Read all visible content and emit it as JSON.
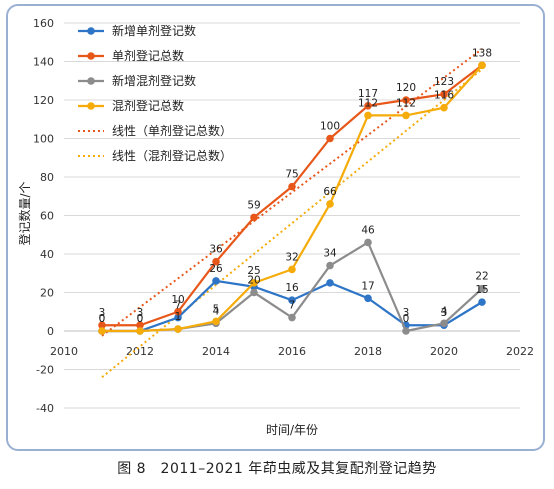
{
  "caption": "图 8　2011–2021 年茚虫威及其复配剂登记趋势",
  "chart_data": {
    "type": "line",
    "xlabel": "时间/年份",
    "ylabel": "登记数量/个",
    "xlim": [
      2010,
      2022
    ],
    "ylim": [
      -40,
      160
    ],
    "xticks": [
      2010,
      2012,
      2014,
      2016,
      2018,
      2020,
      2022
    ],
    "yticks": [
      -40,
      -20,
      0,
      20,
      40,
      60,
      80,
      100,
      120,
      140,
      160
    ],
    "grid": "horizontal",
    "legend_position": "top-left",
    "x": [
      2011,
      2012,
      2013,
      2014,
      2015,
      2016,
      2017,
      2018,
      2019,
      2020,
      2021
    ],
    "series": [
      {
        "name": "新增单剂登记数",
        "color": "#2e75c7",
        "marker": "circle",
        "values": [
          0,
          0,
          7,
          26,
          23,
          16,
          25,
          17,
          3,
          3,
          15
        ],
        "labels": [
          "0",
          "0",
          "7",
          "26",
          "",
          "16",
          "",
          "17",
          "3",
          "3",
          "15"
        ]
      },
      {
        "name": "单剂登记总数",
        "color": "#e8571a",
        "marker": "circle",
        "values": [
          3,
          3,
          10,
          36,
          59,
          75,
          100,
          117,
          120,
          123,
          138
        ],
        "labels": [
          "3",
          "3",
          "10",
          "36",
          "59",
          "75",
          "100",
          "117",
          "120",
          "123",
          "138"
        ]
      },
      {
        "name": "新增混剂登记数",
        "color": "#8c8c8c",
        "marker": "circle",
        "values": [
          0,
          0,
          1,
          4,
          20,
          7,
          34,
          46,
          0,
          4,
          22
        ],
        "labels": [
          "0",
          "0",
          "1",
          "4",
          "20",
          "7",
          "34",
          "46",
          "0",
          "4",
          "22"
        ]
      },
      {
        "name": "混剂登记总数",
        "color": "#f5ac0a",
        "marker": "circle",
        "values": [
          0,
          0,
          1,
          5,
          25,
          32,
          66,
          112,
          112,
          116,
          138
        ],
        "labels": [
          "",
          "",
          "",
          "5",
          "25",
          "32",
          "66",
          "112",
          "112",
          "116",
          ""
        ]
      }
    ],
    "trendlines": [
      {
        "name": "线性（单剂登记总数）",
        "color": "#e8571a",
        "style": "dotted",
        "x": [
          2011,
          2021
        ],
        "values": [
          -2.5,
          146.5
        ]
      },
      {
        "name": "线性（混剂登记总数）",
        "color": "#f5ac0a",
        "style": "dotted",
        "x": [
          2011,
          2021
        ],
        "values": [
          -24,
          136
        ]
      }
    ]
  }
}
